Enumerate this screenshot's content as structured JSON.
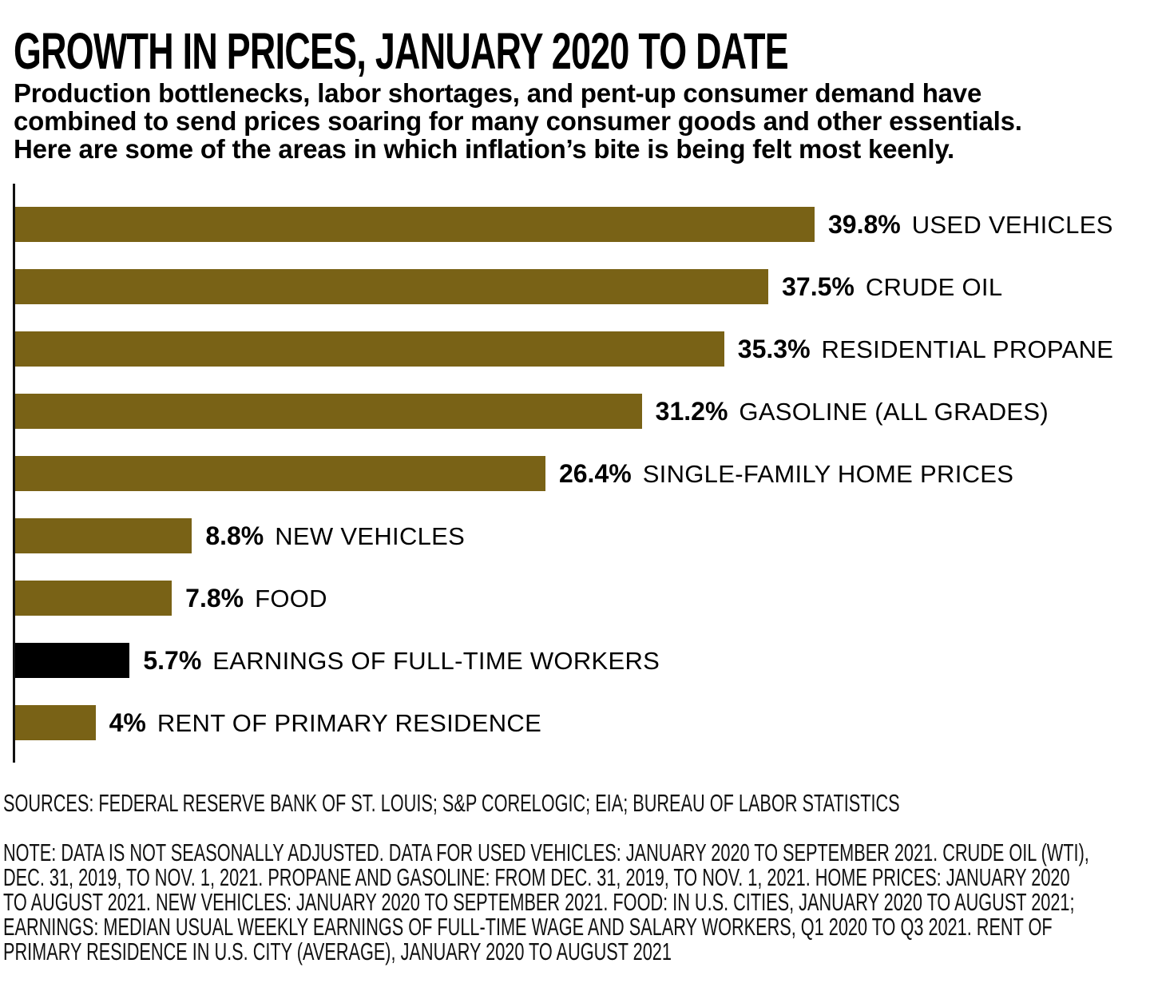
{
  "header": {
    "title": "GROWTH IN PRICES, JANUARY 2020 TO DATE",
    "subtitle_lines": [
      "Production bottlenecks, labor shortages, and pent-up consumer demand have",
      "combined to send prices soaring for many consumer goods and other essentials.",
      "Here are some of the areas in which inflation’s bite is being felt most keenly."
    ]
  },
  "chart_data": {
    "type": "bar",
    "orientation": "horizontal",
    "title": "GROWTH IN PRICES, JANUARY 2020 TO DATE",
    "xlabel": "",
    "ylabel": "",
    "xlim": [
      0,
      40
    ],
    "grid": false,
    "legend": false,
    "categories": [
      "USED VEHICLES",
      "CRUDE OIL",
      "RESIDENTIAL PROPANE",
      "GASOLINE (ALL GRADES)",
      "SINGLE-FAMILY HOME PRICES",
      "NEW VEHICLES",
      "FOOD",
      "EARNINGS OF FULL-TIME WORKERS",
      "RENT OF PRIMARY RESIDENCE"
    ],
    "values": [
      39.8,
      37.5,
      35.3,
      31.2,
      26.4,
      8.8,
      7.8,
      5.7,
      4
    ],
    "value_labels": [
      "39.8%",
      "37.5%",
      "35.3%",
      "31.2%",
      "26.4%",
      "8.8%",
      "7.8%",
      "5.7%",
      "4%"
    ],
    "bar_colors": [
      "#796216",
      "#796216",
      "#796216",
      "#796216",
      "#796216",
      "#796216",
      "#796216",
      "#000000",
      "#796216"
    ]
  },
  "footer": {
    "sources": "SOURCES: FEDERAL RESERVE BANK OF ST. LOUIS; S&P CORELOGIC; EIA; BUREAU OF LABOR STATISTICS",
    "note_lines": [
      "NOTE: DATA IS NOT SEASONALLY ADJUSTED. DATA FOR USED VEHICLES: JANUARY 2020 TO SEPTEMBER 2021. CRUDE OIL (WTI),",
      "DEC. 31, 2019, TO NOV. 1, 2021. PROPANE AND GASOLINE: FROM DEC. 31, 2019, TO NOV. 1, 2021. HOME PRICES: JANUARY 2020",
      "TO AUGUST 2021. NEW VEHICLES: JANUARY 2020 TO SEPTEMBER 2021. FOOD: IN U.S. CITIES, JANUARY 2020 TO AUGUST 2021;",
      "EARNINGS: MEDIAN USUAL WEEKLY EARNINGS OF FULL-TIME WAGE AND SALARY WORKERS, Q1 2020 TO Q3 2021. RENT OF",
      "PRIMARY RESIDENCE IN U.S. CITY (AVERAGE), JANUARY 2020 TO AUGUST 2021"
    ]
  },
  "colors": {
    "bar_olive": "#796216",
    "bar_black": "#000000",
    "axis": "#111111",
    "text": "#000000",
    "background": "#ffffff"
  }
}
